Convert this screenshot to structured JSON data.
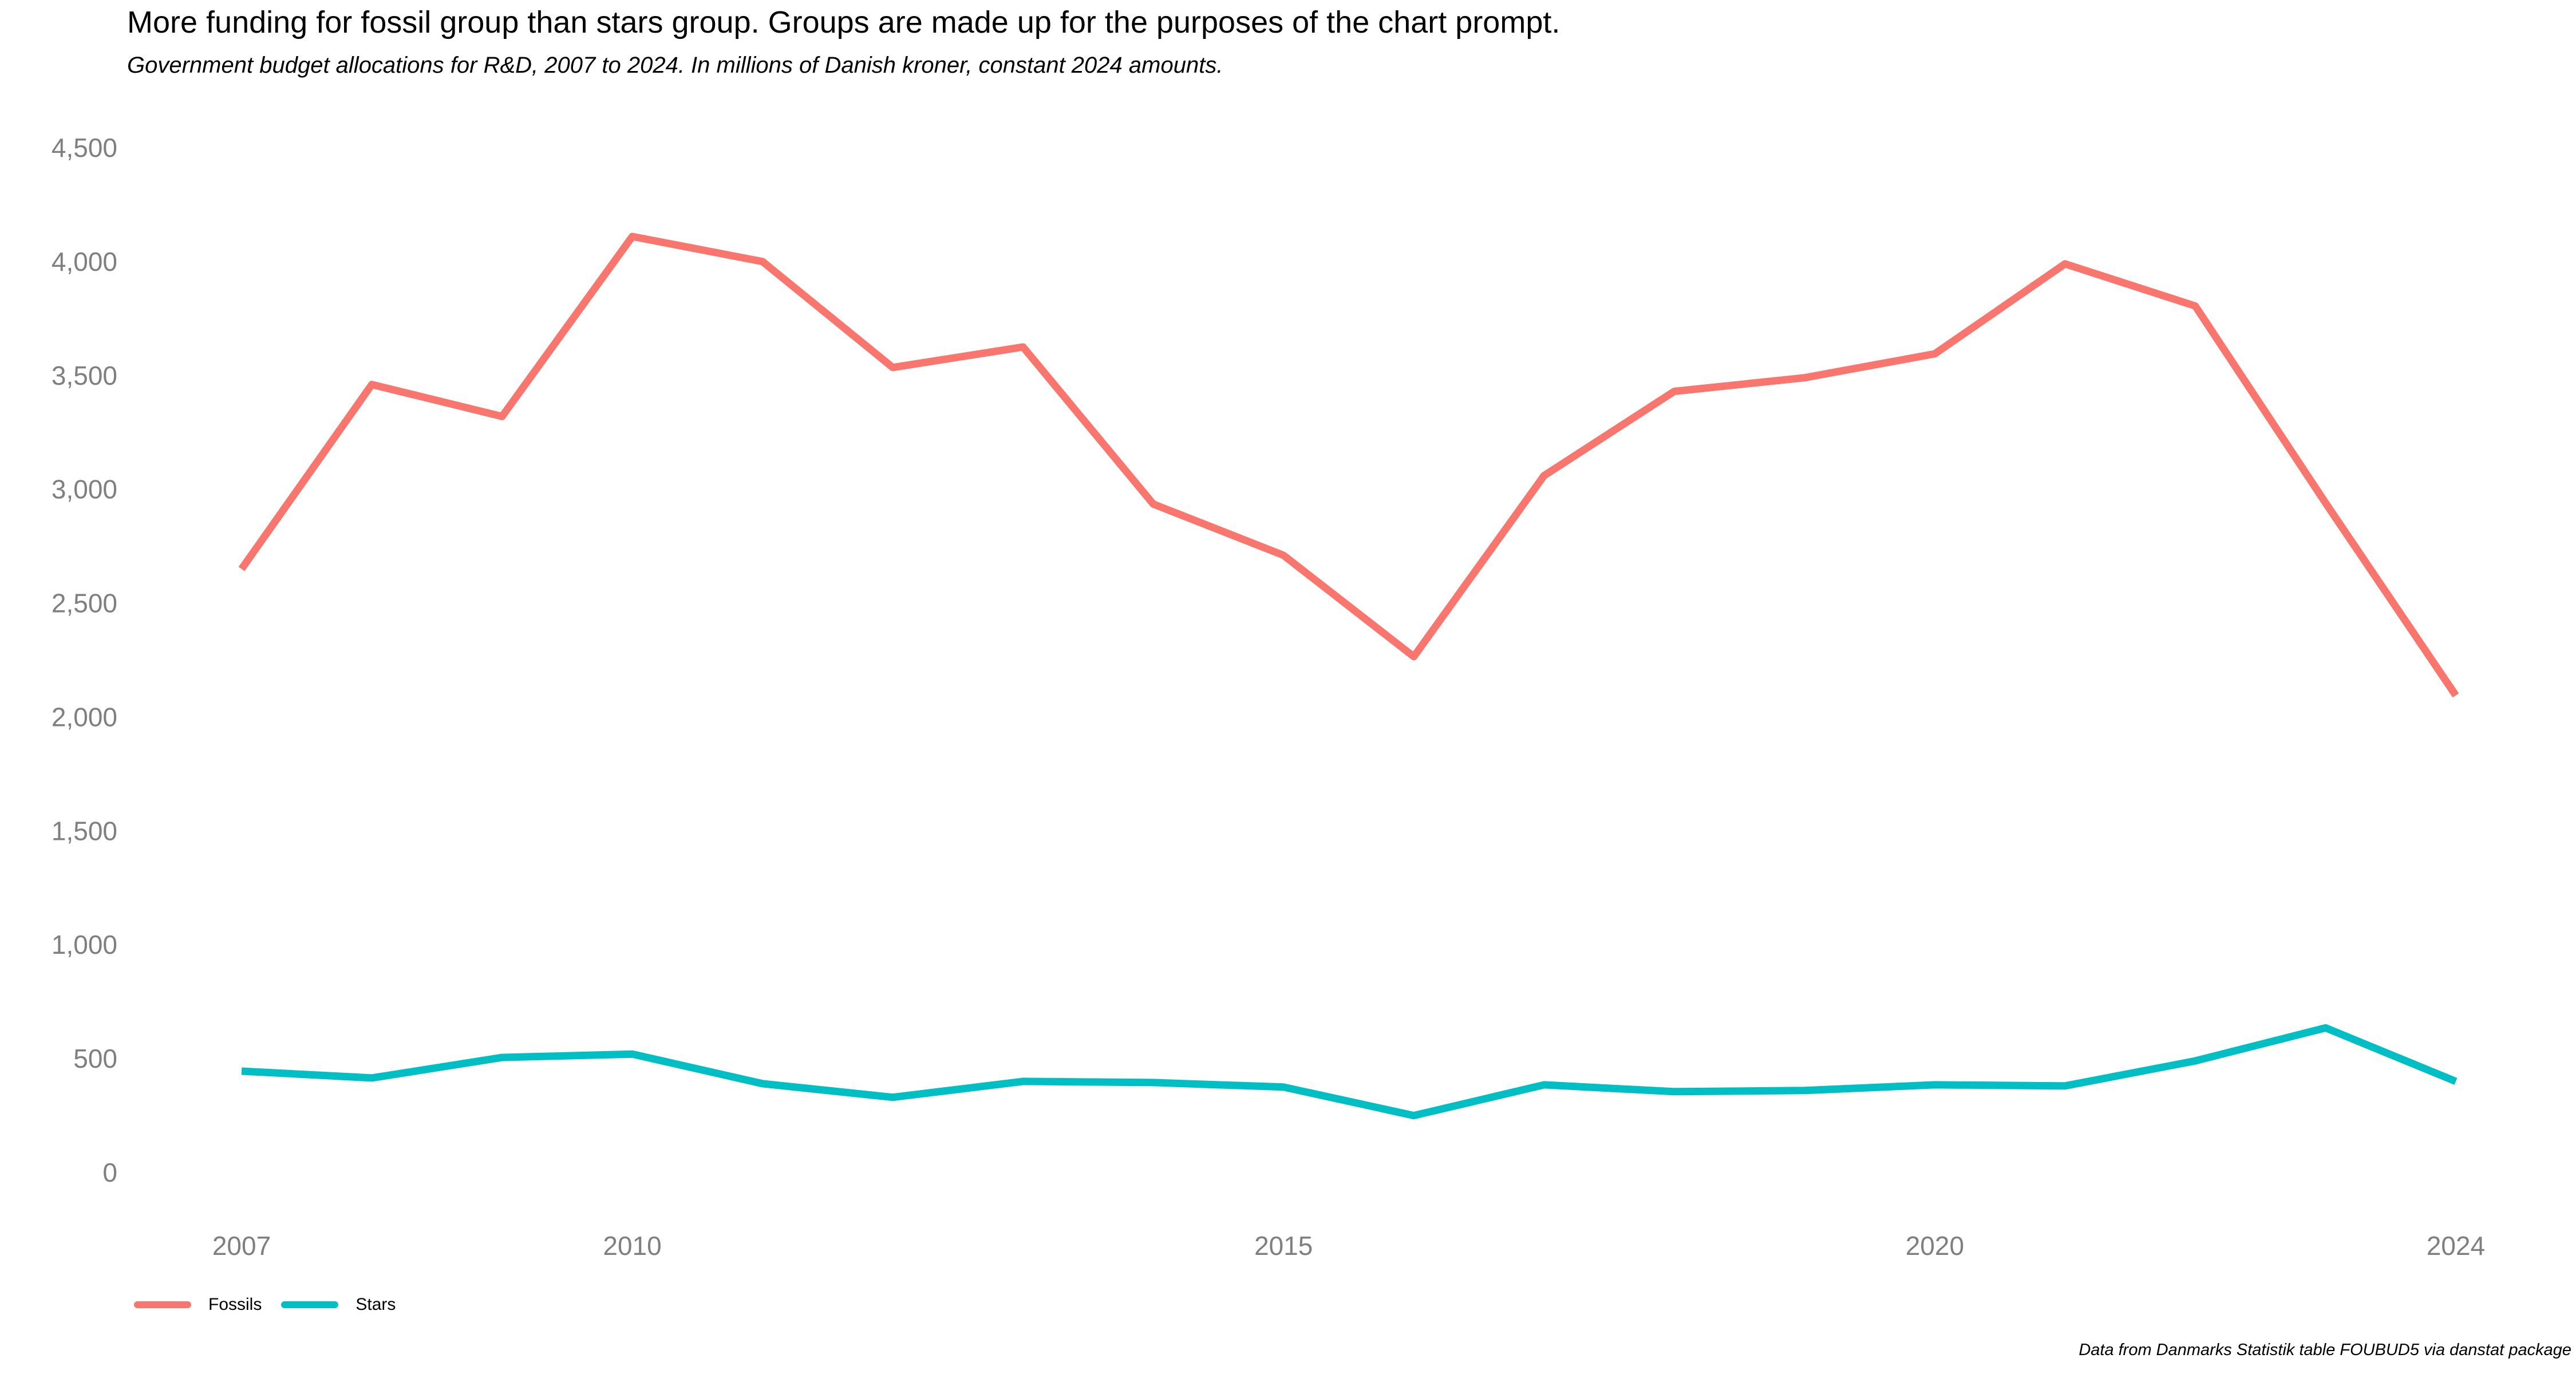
{
  "chart_data": {
    "type": "line",
    "title": "More funding for fossil group than stars group. Groups are made up for the purposes of the chart prompt.",
    "subtitle": "Government budget allocations for R&D, 2007 to 2024. In millions of Danish kroner, constant 2024 amounts.",
    "caption": "Data from Danmarks Statistik table FOUBUD5 via danstat package",
    "xlabel": "",
    "ylabel": "",
    "x": [
      2007,
      2008,
      2009,
      2010,
      2011,
      2012,
      2013,
      2014,
      2015,
      2016,
      2017,
      2018,
      2019,
      2020,
      2021,
      2022,
      2023,
      2024
    ],
    "x_ticks": [
      2007,
      2010,
      2015,
      2020,
      2024
    ],
    "y_ticks": [
      0,
      500,
      1000,
      1500,
      2000,
      2500,
      3000,
      3500,
      4000,
      4500
    ],
    "y_tick_labels": [
      "0",
      "500",
      "1,000",
      "1,500",
      "2,000",
      "2,500",
      "3,000",
      "3,500",
      "4,000",
      "4,500"
    ],
    "xlim": [
      2007,
      2024
    ],
    "ylim": [
      0,
      4500
    ],
    "grid": false,
    "legend_position": "bottom-left",
    "series": [
      {
        "name": "Fossils",
        "color": "#F8766D",
        "values": [
          2650,
          3460,
          3320,
          4110,
          4000,
          3535,
          3625,
          2935,
          2710,
          2265,
          3060,
          3430,
          3490,
          3595,
          3990,
          3805,
          2940,
          2095
        ]
      },
      {
        "name": "Stars",
        "color": "#00BFC4",
        "values": [
          445,
          415,
          505,
          520,
          390,
          330,
          400,
          395,
          375,
          250,
          385,
          355,
          360,
          385,
          380,
          490,
          635,
          400
        ]
      }
    ]
  }
}
